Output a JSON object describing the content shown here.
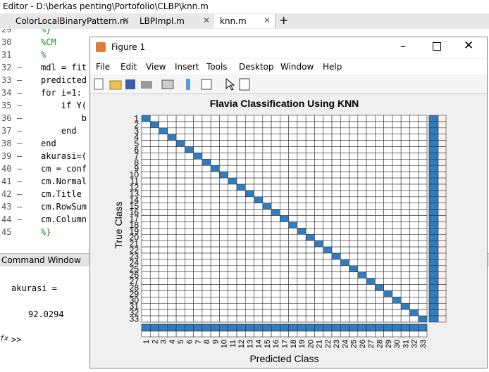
{
  "title_bar": "Editor - D:\\berkas penting\\Portofolio\\CLBP\\knn.m",
  "tabs": [
    "ColorLocalBinaryPattern.m",
    "LBPImpl.m",
    "knn.m"
  ],
  "editor": {
    "lines": [
      {
        "n": "29",
        "marker": "",
        "code": "%}"
      },
      {
        "n": "30",
        "marker": "",
        "code": "%CM"
      },
      {
        "n": "31",
        "marker": "",
        "code": "%"
      },
      {
        "n": "32",
        "marker": "–",
        "code": "mdl = fit"
      },
      {
        "n": "33",
        "marker": "–",
        "code": "predicted"
      },
      {
        "n": "34",
        "marker": "–",
        "code": "for i=1:"
      },
      {
        "n": "35",
        "marker": "–",
        "code": "    if Y("
      },
      {
        "n": "36",
        "marker": "–",
        "code": "        b"
      },
      {
        "n": "37",
        "marker": "–",
        "code": "    end"
      },
      {
        "n": "38",
        "marker": "–",
        "code": "end"
      },
      {
        "n": "39",
        "marker": "–",
        "code": "akurasi=("
      },
      {
        "n": "40",
        "marker": "–",
        "code": "cm = conf"
      },
      {
        "n": "41",
        "marker": "–",
        "code": "cm.Normal"
      },
      {
        "n": "42",
        "marker": "–",
        "code": "cm.Title"
      },
      {
        "n": "43",
        "marker": "–",
        "code": "cm.RowSum"
      },
      {
        "n": "44",
        "marker": "–",
        "code": "cm.Column"
      },
      {
        "n": "45",
        "marker": "",
        "code": "%}"
      }
    ]
  },
  "command_window": {
    "title": "Command Window",
    "lines": [
      "akurasi =",
      "92.0294"
    ],
    "prompt_icon": "fx",
    "prompt": ">>"
  },
  "figure": {
    "title": "Figure 1",
    "menu": [
      "File",
      "Edit",
      "View",
      "Insert",
      "Tools",
      "Desktop",
      "Window",
      "Help"
    ],
    "chart": {
      "title": "Flavia Classification Using KNN",
      "x_label": "Predicted Class",
      "y_label": "True Class",
      "classes": [
        1,
        2,
        3,
        4,
        5,
        6,
        7,
        8,
        9,
        10,
        11,
        12,
        13,
        14,
        15,
        16,
        17,
        18,
        19,
        20,
        21,
        22,
        23,
        24,
        25,
        26,
        27,
        28,
        29,
        30,
        31,
        32,
        33
      ]
    }
  }
}
